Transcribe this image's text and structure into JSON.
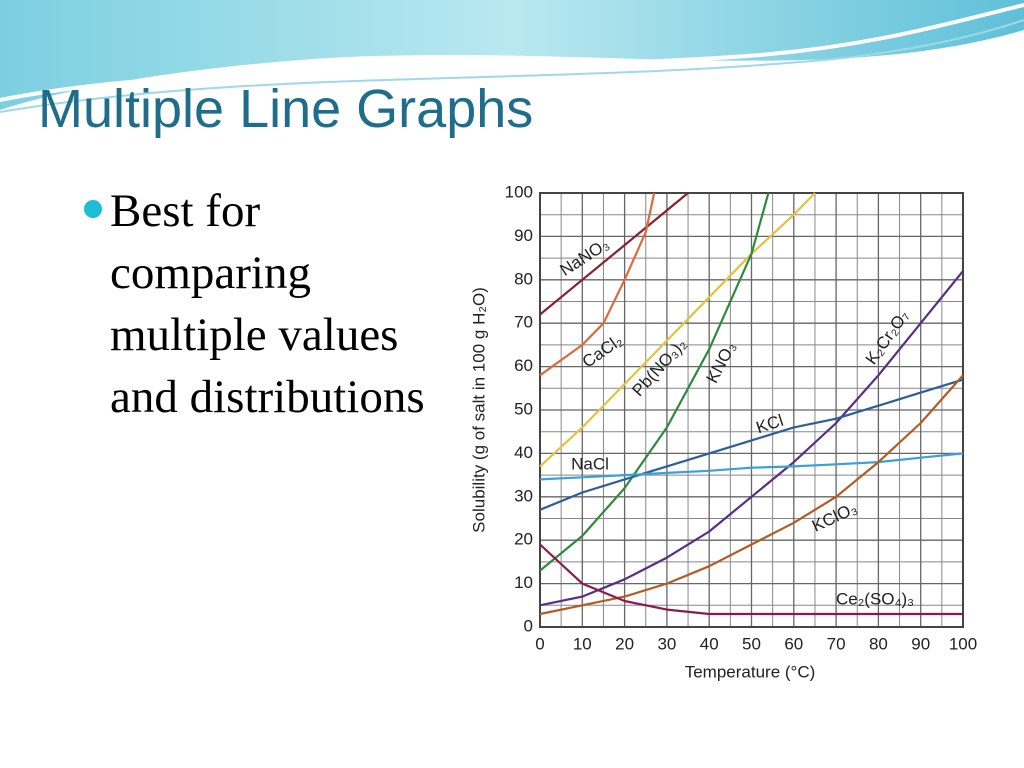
{
  "slide_title": "Multiple Line Graphs",
  "bullets": [
    "Best for comparing multiple values and distributions"
  ],
  "chart_data": {
    "type": "line",
    "ylabel": "Solubility (g of salt in 100 g H₂O)",
    "xlabel": "Temperature (°C)",
    "xlim": [
      0,
      100
    ],
    "ylim": [
      0,
      100
    ],
    "xticks": [
      0,
      10,
      20,
      30,
      40,
      50,
      60,
      70,
      80,
      90,
      100
    ],
    "yticks": [
      0,
      10,
      20,
      30,
      40,
      50,
      60,
      70,
      80,
      90,
      100
    ],
    "minor_grid": [
      5,
      15,
      25,
      35,
      45,
      55,
      65,
      75,
      85,
      95
    ],
    "grid": true,
    "series": [
      {
        "name": "NaNO₃",
        "color": "#8b1f2e",
        "x": [
          0,
          10,
          20,
          30,
          35
        ],
        "values": [
          72,
          80,
          88,
          96,
          100
        ]
      },
      {
        "name": "CaCl₂",
        "color": "#e0693c",
        "x": [
          0,
          10,
          15,
          20,
          25,
          27
        ],
        "values": [
          58,
          65,
          70,
          80,
          91,
          100
        ]
      },
      {
        "name": "Pb(NO₃)₂",
        "color": "#e6c13f",
        "x": [
          0,
          10,
          20,
          30,
          40,
          50,
          60,
          65
        ],
        "values": [
          37,
          46,
          56,
          66,
          76,
          86,
          95,
          100
        ]
      },
      {
        "name": "KNO₃",
        "color": "#2e8a3e",
        "x": [
          0,
          10,
          20,
          30,
          40,
          50,
          54
        ],
        "values": [
          13,
          21,
          32,
          46,
          64,
          86,
          100
        ]
      },
      {
        "name": "K₂Cr₂O₇",
        "color": "#5a2d84",
        "x": [
          0,
          10,
          20,
          30,
          40,
          50,
          60,
          70,
          80,
          90,
          100
        ],
        "values": [
          5,
          7,
          11,
          16,
          22,
          30,
          38,
          47,
          58,
          70,
          82
        ]
      },
      {
        "name": "KCl",
        "color": "#2d5d9b",
        "x": [
          0,
          10,
          20,
          30,
          40,
          50,
          60,
          70,
          80,
          90,
          100
        ],
        "values": [
          27,
          31,
          34,
          37,
          40,
          43,
          46,
          48,
          51,
          54,
          57
        ]
      },
      {
        "name": "NaCl",
        "color": "#3aa0d8",
        "x": [
          0,
          10,
          20,
          30,
          40,
          50,
          60,
          70,
          80,
          90,
          100
        ],
        "values": [
          34,
          34.5,
          35,
          35.5,
          36,
          36.7,
          37,
          37.5,
          38,
          39,
          40
        ]
      },
      {
        "name": "KClO₃",
        "color": "#b35c22",
        "x": [
          0,
          10,
          20,
          30,
          40,
          50,
          60,
          70,
          80,
          90,
          100
        ],
        "values": [
          3,
          5,
          7,
          10,
          14,
          19,
          24,
          30,
          38,
          47,
          58
        ]
      },
      {
        "name": "Ce₂(SO₄)₃",
        "color": "#8b1a4b",
        "x": [
          0,
          10,
          20,
          30,
          40,
          50,
          60,
          70,
          80,
          90,
          100
        ],
        "values": [
          19,
          10,
          6,
          4,
          3,
          3,
          3,
          3,
          3,
          3,
          3
        ]
      }
    ]
  }
}
